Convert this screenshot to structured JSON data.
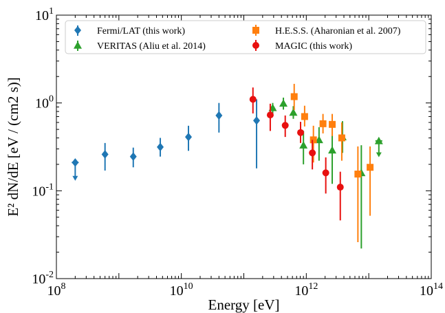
{
  "chart_data": {
    "type": "scatter",
    "xscale": "log",
    "yscale": "log",
    "xlim": [
      100000000.0,
      100000000000000.0
    ],
    "ylim": [
      0.01,
      10
    ],
    "xlabel": "Energy [eV]",
    "ylabel": "E² dN/dE [eV / (cm2 s)]",
    "x_ticks": [
      {
        "value": 100000000.0,
        "base": "10",
        "exp": "8"
      },
      {
        "value": 10000000000.0,
        "base": "10",
        "exp": "10"
      },
      {
        "value": 1000000000000.0,
        "base": "10",
        "exp": "12"
      },
      {
        "value": 100000000000000.0,
        "base": "10",
        "exp": "14"
      }
    ],
    "y_ticks": [
      {
        "value": 0.01,
        "base": "10",
        "exp": "-2"
      },
      {
        "value": 0.1,
        "base": "10",
        "exp": "-1"
      },
      {
        "value": 1,
        "base": "10",
        "exp": "0"
      },
      {
        "value": 10,
        "base": "10",
        "exp": "1"
      }
    ],
    "legend_position": "top",
    "series": [
      {
        "name": "Fermi/LAT (this work)",
        "color": "#1f77b4",
        "marker": "diamond",
        "points": [
          {
            "x": 200000000.0,
            "y": 0.21,
            "ul": 0.135
          },
          {
            "x": 600000000.0,
            "y": 0.26,
            "lo": 0.17,
            "hi": 0.35
          },
          {
            "x": 1700000000.0,
            "y": 0.245,
            "lo": 0.185,
            "hi": 0.31
          },
          {
            "x": 4600000000.0,
            "y": 0.315,
            "lo": 0.245,
            "hi": 0.4
          },
          {
            "x": 13000000000.0,
            "y": 0.41,
            "lo": 0.285,
            "hi": 0.55
          },
          {
            "x": 40000000000.0,
            "y": 0.72,
            "lo": 0.46,
            "hi": 1.0
          },
          {
            "x": 160000000000.0,
            "y": 0.63,
            "lo": 0.18,
            "hi": 1.1
          }
        ]
      },
      {
        "name": "VERITAS (Aliu et al. 2014)",
        "color": "#2ca02c",
        "marker": "triangle",
        "points": [
          {
            "x": 290000000000.0,
            "y": 0.88,
            "lo": 0.75,
            "hi": 1.0
          },
          {
            "x": 430000000000.0,
            "y": 0.99,
            "lo": 0.84,
            "hi": 1.15
          },
          {
            "x": 620000000000.0,
            "y": 0.78,
            "lo": 0.66,
            "hi": 0.92
          },
          {
            "x": 900000000000.0,
            "y": 0.33,
            "lo": 0.2,
            "hi": 0.48
          },
          {
            "x": 1600000000000.0,
            "y": 0.38,
            "lo": 0.22,
            "hi": 0.53
          },
          {
            "x": 2600000000000.0,
            "y": 0.29,
            "lo": 0.12,
            "hi": 0.5
          },
          {
            "x": 3800000000000.0,
            "y": 0.41,
            "lo": 0.27,
            "hi": 0.62
          },
          {
            "x": 7600000000000.0,
            "y": 0.16,
            "lo": 0.022,
            "hi": 0.33
          },
          {
            "x": 14500000000000.0,
            "y": 0.37,
            "ul": 0.25
          }
        ]
      },
      {
        "name": "H.E.S.S. (Aharonian et al. 2007)",
        "color": "#ff7f0e",
        "marker": "square",
        "points": [
          {
            "x": 640000000000.0,
            "y": 1.18,
            "lo": 0.83,
            "hi": 1.65
          },
          {
            "x": 940000000000.0,
            "y": 0.7,
            "lo": 0.54,
            "hi": 0.93
          },
          {
            "x": 1300000000000.0,
            "y": 0.38,
            "lo": 0.21,
            "hi": 0.55
          },
          {
            "x": 1850000000000.0,
            "y": 0.58,
            "lo": 0.45,
            "hi": 0.75
          },
          {
            "x": 2600000000000.0,
            "y": 0.57,
            "lo": 0.42,
            "hi": 0.75
          },
          {
            "x": 3700000000000.0,
            "y": 0.4,
            "lo": 0.22,
            "hi": 0.6
          },
          {
            "x": 6700000000000.0,
            "y": 0.155,
            "lo": 0.026,
            "hi": 0.32
          },
          {
            "x": 10500000000000.0,
            "y": 0.185,
            "lo": 0.052,
            "hi": 0.32
          }
        ]
      },
      {
        "name": "MAGIC (this work)",
        "color": "#e8100f",
        "marker": "circle",
        "points": [
          {
            "x": 140000000000.0,
            "y": 1.1,
            "lo": 0.76,
            "hi": 1.5
          },
          {
            "x": 265000000000.0,
            "y": 0.73,
            "lo": 0.48,
            "hi": 0.98
          },
          {
            "x": 460000000000.0,
            "y": 0.555,
            "lo": 0.41,
            "hi": 0.72
          },
          {
            "x": 810000000000.0,
            "y": 0.46,
            "lo": 0.35,
            "hi": 0.61
          },
          {
            "x": 1250000000000.0,
            "y": 0.27,
            "lo": 0.175,
            "hi": 0.38
          },
          {
            "x": 2050000000000.0,
            "y": 0.16,
            "lo": 0.093,
            "hi": 0.24
          },
          {
            "x": 3500000000000.0,
            "y": 0.11,
            "lo": 0.046,
            "hi": 0.165
          }
        ]
      }
    ],
    "legend_order": [
      0,
      2,
      1,
      3
    ]
  }
}
